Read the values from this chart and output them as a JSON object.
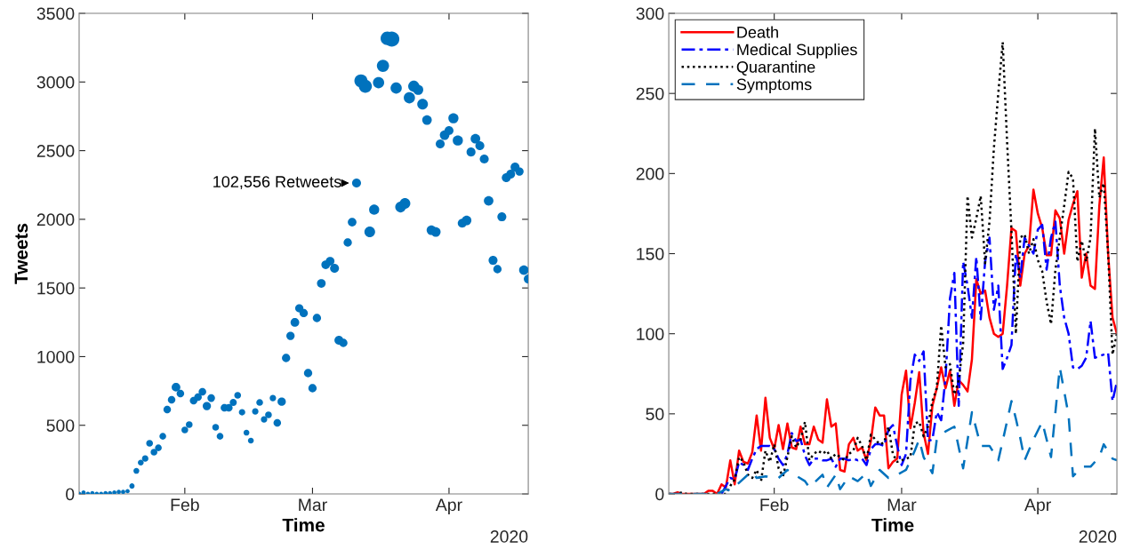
{
  "chart_data": [
    {
      "type": "bubble",
      "xlabel": "Time",
      "ylabel": "Tweets",
      "color": "#0072bd",
      "x": [
        "2020-01-08",
        "2020-01-09",
        "2020-01-10",
        "2020-01-11",
        "2020-01-12",
        "2020-01-13",
        "2020-01-14",
        "2020-01-15",
        "2020-01-16",
        "2020-01-17",
        "2020-01-18",
        "2020-01-19",
        "2020-01-20",
        "2020-01-21",
        "2020-01-22",
        "2020-01-23",
        "2020-01-24",
        "2020-01-25",
        "2020-01-26",
        "2020-01-27",
        "2020-01-28",
        "2020-01-29",
        "2020-01-30",
        "2020-01-31",
        "2020-02-01",
        "2020-02-02",
        "2020-02-03",
        "2020-02-04",
        "2020-02-05",
        "2020-02-06",
        "2020-02-07",
        "2020-02-08",
        "2020-02-09",
        "2020-02-10",
        "2020-02-11",
        "2020-02-12",
        "2020-02-13",
        "2020-02-14",
        "2020-02-15",
        "2020-02-16",
        "2020-02-17",
        "2020-02-18",
        "2020-02-19",
        "2020-02-20",
        "2020-02-21",
        "2020-02-22",
        "2020-02-23",
        "2020-02-24",
        "2020-02-25",
        "2020-02-26",
        "2020-02-27",
        "2020-02-28",
        "2020-02-29",
        "2020-03-01",
        "2020-03-02",
        "2020-03-03",
        "2020-03-04",
        "2020-03-05",
        "2020-03-06",
        "2020-03-07",
        "2020-03-08",
        "2020-03-09",
        "2020-03-10",
        "2020-03-11",
        "2020-03-12",
        "2020-03-13",
        "2020-03-14",
        "2020-03-15",
        "2020-03-16",
        "2020-03-17",
        "2020-03-18",
        "2020-03-19",
        "2020-03-20",
        "2020-03-21",
        "2020-03-22",
        "2020-03-23",
        "2020-03-24",
        "2020-03-25",
        "2020-03-26",
        "2020-03-27",
        "2020-03-28",
        "2020-03-29",
        "2020-03-30",
        "2020-03-31",
        "2020-04-01",
        "2020-04-02",
        "2020-04-03",
        "2020-04-04",
        "2020-04-05",
        "2020-04-06",
        "2020-04-07",
        "2020-04-08",
        "2020-04-09",
        "2020-04-10",
        "2020-04-11",
        "2020-04-12",
        "2020-04-13",
        "2020-04-14",
        "2020-04-15",
        "2020-04-16",
        "2020-04-17",
        "2020-04-18",
        "2020-04-19"
      ],
      "values": [
        0,
        10,
        0,
        5,
        0,
        0,
        5,
        5,
        10,
        15,
        15,
        20,
        58,
        168,
        228,
        258,
        369,
        304,
        336,
        420,
        614,
        686,
        777,
        731,
        466,
        505,
        679,
        705,
        744,
        640,
        698,
        485,
        420,
        627,
        627,
        666,
        718,
        595,
        446,
        388,
        601,
        666,
        543,
        576,
        698,
        517,
        672,
        990,
        1151,
        1249,
        1352,
        1317,
        880,
        770,
        1281,
        1533,
        1669,
        1695,
        1643,
        1119,
        1100,
        1831,
        1979,
        2264,
        3008,
        2969,
        1908,
        2070,
        2995,
        3118,
        3318,
        3312,
        2956,
        2089,
        2115,
        2885,
        2969,
        2943,
        2839,
        2723,
        1921,
        1908,
        2549,
        2613,
        2646,
        2736,
        2574,
        1972,
        1992,
        2490,
        2587,
        2536,
        2439,
        2135,
        1701,
        1637,
        2018,
        2303,
        2329,
        2380,
        2348,
        1630,
        1565
      ],
      "sizes": [
        0.08,
        0.08,
        0.08,
        0.08,
        0.08,
        0.08,
        0.08,
        0.08,
        0.08,
        0.08,
        0.08,
        0.08,
        0.12,
        0.15,
        0.15,
        0.18,
        0.2,
        0.2,
        0.2,
        0.2,
        0.25,
        0.25,
        0.33,
        0.25,
        0.2,
        0.2,
        0.25,
        0.25,
        0.25,
        0.3,
        0.25,
        0.2,
        0.2,
        0.25,
        0.25,
        0.22,
        0.2,
        0.18,
        0.15,
        0.15,
        0.18,
        0.2,
        0.18,
        0.2,
        0.18,
        0.25,
        0.3,
        0.3,
        0.3,
        0.33,
        0.3,
        0.3,
        0.3,
        0.3,
        0.3,
        0.33,
        0.33,
        0.33,
        0.35,
        0.35,
        0.3,
        0.3,
        0.33,
        0.35,
        0.75,
        0.75,
        0.5,
        0.45,
        0.55,
        0.65,
        0.8,
        1.0,
        0.55,
        0.5,
        0.5,
        0.55,
        0.55,
        0.45,
        0.5,
        0.4,
        0.4,
        0.4,
        0.35,
        0.4,
        0.35,
        0.45,
        0.45,
        0.35,
        0.4,
        0.35,
        0.4,
        0.35,
        0.35,
        0.4,
        0.35,
        0.3,
        0.35,
        0.35,
        0.35,
        0.35,
        0.3,
        0.4,
        0.35
      ],
      "xlim": [
        "2020-01-08",
        "2020-04-19"
      ],
      "xticks": [
        {
          "value": "2020-02-01",
          "label": "Feb"
        },
        {
          "value": "2020-03-01",
          "label": "Mar"
        },
        {
          "value": "2020-04-01",
          "label": "Apr"
        }
      ],
      "ylim": [
        0,
        3500
      ],
      "yticks": [
        0,
        500,
        1000,
        1500,
        2000,
        2500,
        3000,
        3500
      ],
      "annotations": [
        {
          "text": "102,556 Retweets",
          "x": "2020-03-11",
          "y": 2264
        },
        "2020"
      ]
    },
    {
      "type": "line",
      "xlabel": "Time",
      "legend": "top left",
      "x": [
        "2020-01-08",
        "2020-01-09",
        "2020-01-10",
        "2020-01-11",
        "2020-01-12",
        "2020-01-13",
        "2020-01-14",
        "2020-01-15",
        "2020-01-16",
        "2020-01-17",
        "2020-01-18",
        "2020-01-19",
        "2020-01-20",
        "2020-01-21",
        "2020-01-22",
        "2020-01-23",
        "2020-01-24",
        "2020-01-25",
        "2020-01-26",
        "2020-01-27",
        "2020-01-28",
        "2020-01-29",
        "2020-01-30",
        "2020-01-31",
        "2020-02-01",
        "2020-02-02",
        "2020-02-03",
        "2020-02-04",
        "2020-02-05",
        "2020-02-06",
        "2020-02-07",
        "2020-02-08",
        "2020-02-09",
        "2020-02-10",
        "2020-02-11",
        "2020-02-12",
        "2020-02-13",
        "2020-02-14",
        "2020-02-15",
        "2020-02-16",
        "2020-02-17",
        "2020-02-18",
        "2020-02-19",
        "2020-02-20",
        "2020-02-21",
        "2020-02-22",
        "2020-02-23",
        "2020-02-24",
        "2020-02-25",
        "2020-02-26",
        "2020-02-27",
        "2020-02-28",
        "2020-02-29",
        "2020-03-01",
        "2020-03-02",
        "2020-03-03",
        "2020-03-04",
        "2020-03-05",
        "2020-03-06",
        "2020-03-07",
        "2020-03-08",
        "2020-03-09",
        "2020-03-10",
        "2020-03-11",
        "2020-03-12",
        "2020-03-13",
        "2020-03-14",
        "2020-03-15",
        "2020-03-16",
        "2020-03-17",
        "2020-03-18",
        "2020-03-19",
        "2020-03-20",
        "2020-03-21",
        "2020-03-22",
        "2020-03-23",
        "2020-03-24",
        "2020-03-25",
        "2020-03-26",
        "2020-03-27",
        "2020-03-28",
        "2020-03-29",
        "2020-03-30",
        "2020-03-31",
        "2020-04-01",
        "2020-04-02",
        "2020-04-03",
        "2020-04-04",
        "2020-04-05",
        "2020-04-06",
        "2020-04-07",
        "2020-04-08",
        "2020-04-09",
        "2020-04-10",
        "2020-04-11",
        "2020-04-12",
        "2020-04-13",
        "2020-04-14",
        "2020-04-15",
        "2020-04-16",
        "2020-04-17",
        "2020-04-18",
        "2020-04-19"
      ],
      "series": [
        {
          "name": "Death",
          "color": "#ff0000",
          "line_style": "solid",
          "values": [
            0,
            0,
            1,
            0,
            0,
            0,
            0,
            0,
            0,
            2,
            2,
            0,
            6,
            4,
            21,
            6,
            27,
            20,
            19,
            26,
            49,
            27,
            60,
            35,
            28,
            43,
            28,
            44,
            29,
            28,
            42,
            31,
            31,
            42,
            34,
            32,
            59,
            42,
            44,
            15,
            14,
            31,
            35,
            27,
            29,
            21,
            33,
            54,
            49,
            49,
            16,
            20,
            22,
            62,
            77,
            41,
            57,
            76,
            38,
            25,
            55,
            66,
            79,
            66,
            77,
            55,
            71,
            68,
            64,
            84,
            134,
            125,
            127,
            110,
            100,
            98,
            100,
            130,
            166,
            164,
            130,
            150,
            155,
            190,
            175,
            166,
            149,
            149,
            177,
            172,
            150,
            171,
            181,
            189,
            135,
            150,
            130,
            128,
            180,
            210,
            150,
            110,
            100
          ]
        },
        {
          "name": "Medical Supplies",
          "color": "#0000ff",
          "line_style": "dashdot",
          "values": [
            null,
            null,
            null,
            null,
            null,
            null,
            null,
            null,
            null,
            null,
            null,
            null,
            0,
            5,
            10,
            9,
            20,
            18,
            15,
            22,
            28,
            30,
            30,
            30,
            28,
            22,
            18,
            25,
            38,
            33,
            34,
            24,
            18,
            22,
            22,
            21,
            21,
            22,
            17,
            22,
            22,
            21,
            22,
            21,
            22,
            18,
            28,
            31,
            31,
            30,
            40,
            43,
            30,
            18,
            25,
            71,
            87,
            83,
            89,
            33,
            34,
            51,
            46,
            73,
            122,
            138,
            55,
            145,
            130,
            110,
            148,
            109,
            145,
            160,
            115,
            130,
            78,
            85,
            93,
            150,
            135,
            160,
            155,
            150,
            165,
            168,
            140,
            160,
            170,
            130,
            110,
            100,
            79,
            78,
            80,
            85,
            108,
            85,
            86,
            87,
            88,
            58,
            70
          ]
        },
        {
          "name": "Quarantine",
          "color": "#000000",
          "line_style": "dotted",
          "values": [
            0,
            0,
            0,
            1,
            0,
            0,
            0,
            0,
            0,
            0,
            0,
            0,
            0,
            0,
            5,
            9,
            23,
            20,
            12,
            10,
            15,
            8,
            27,
            20,
            31,
            16,
            11,
            23,
            36,
            29,
            34,
            45,
            21,
            25,
            27,
            25,
            27,
            22,
            25,
            23,
            21,
            25,
            27,
            35,
            30,
            21,
            37,
            34,
            31,
            32,
            42,
            25,
            20,
            21,
            22,
            23,
            44,
            45,
            36,
            42,
            58,
            66,
            105,
            79,
            81,
            62,
            71,
            94,
            186,
            160,
            172,
            186,
            144,
            170,
            216,
            250,
            282,
            220,
            164,
            100,
            160,
            162,
            150,
            159,
            146,
            139,
            120,
            106,
            140,
            160,
            180,
            201,
            197,
            145,
            158,
            145,
            160,
            228,
            185,
            194,
            150,
            87,
            100
          ]
        },
        {
          "name": "Symptoms",
          "color": "#0072bd",
          "line_style": "dashed",
          "x": [
            "2020-01-08",
            "2020-01-19",
            "2020-01-21",
            "2020-01-22",
            "2020-01-26",
            "2020-01-27",
            "2020-01-28",
            "2020-01-30",
            "2020-02-02",
            "2020-02-04",
            "2020-02-05",
            "2020-02-08",
            "2020-02-09",
            "2020-02-12",
            "2020-02-13",
            "2020-02-15",
            "2020-02-16",
            "2020-02-18",
            "2020-02-20",
            "2020-02-22",
            "2020-02-23",
            "2020-02-25",
            "2020-02-27",
            "2020-02-29",
            "2020-03-02",
            "2020-03-04",
            "2020-03-05",
            "2020-03-06",
            "2020-03-08",
            "2020-03-09",
            "2020-03-11",
            "2020-03-13",
            "2020-03-15",
            "2020-03-17",
            "2020-03-19",
            "2020-03-21",
            "2020-03-23",
            "2020-03-24",
            "2020-03-26",
            "2020-03-27",
            "2020-03-28",
            "2020-03-29",
            "2020-03-31",
            "2020-04-02",
            "2020-04-03",
            "2020-04-04",
            "2020-04-06",
            "2020-04-08",
            "2020-04-09",
            "2020-04-11",
            "2020-04-13",
            "2020-04-15",
            "2020-04-16",
            "2020-04-18",
            "2020-04-19"
          ],
          "values": [
            0,
            0,
            3,
            2,
            12,
            14,
            10,
            11,
            10,
            15,
            13,
            8,
            4,
            12,
            4,
            12,
            3,
            11,
            8,
            13,
            5,
            15,
            10,
            12,
            15,
            27,
            34,
            23,
            13,
            34,
            39,
            42,
            16,
            51,
            30,
            30,
            21,
            33,
            58,
            47,
            35,
            21,
            34,
            45,
            34,
            23,
            79,
            49,
            11,
            17,
            17,
            23,
            31,
            22,
            21
          ]
        }
      ],
      "xlim": [
        "2020-01-08",
        "2020-04-19"
      ],
      "xticks": [
        {
          "value": "2020-02-01",
          "label": "Feb"
        },
        {
          "value": "2020-03-01",
          "label": "Mar"
        },
        {
          "value": "2020-04-01",
          "label": "Apr"
        }
      ],
      "ylim": [
        0,
        300
      ],
      "yticks": [
        0,
        50,
        100,
        150,
        200,
        250,
        300
      ],
      "annotations": [
        "2020"
      ]
    }
  ]
}
